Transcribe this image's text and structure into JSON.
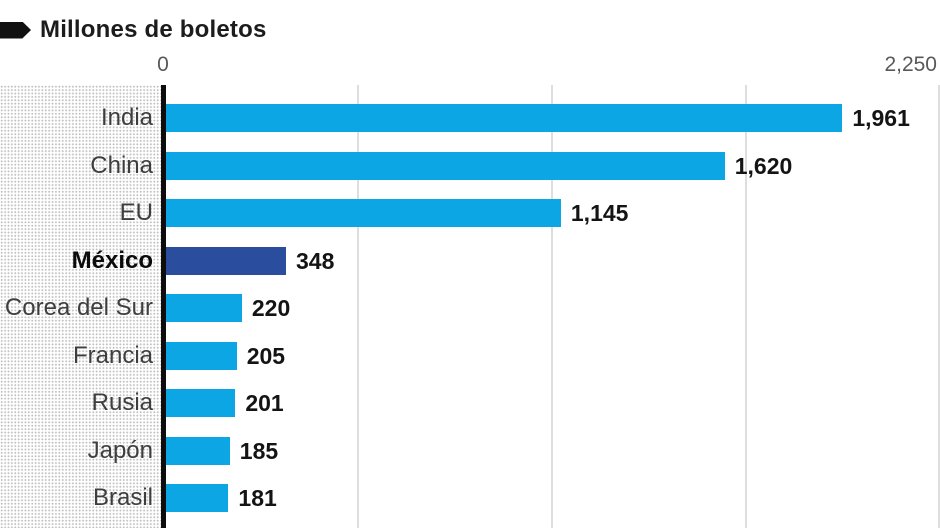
{
  "header": {
    "icon": "tag-icon",
    "title": "Millones de boletos"
  },
  "axis": {
    "min_label": "0",
    "max_label": "2,250",
    "min_value": 0,
    "max_value": 2250,
    "gridline_values": [
      562.5,
      1125,
      1687.5,
      2250
    ]
  },
  "colors": {
    "bar": "#0da6e4",
    "highlight_bar": "#2a4d9e",
    "axis_line": "#0d0d0d",
    "gridline": "#dedede"
  },
  "chart_data": {
    "type": "bar",
    "orientation": "horizontal",
    "title": "Millones de boletos",
    "xlabel": "",
    "ylabel": "",
    "xlim": [
      0,
      2250
    ],
    "grid": true,
    "categories": [
      "India",
      "China",
      "EU",
      "México",
      "Corea del Sur",
      "Francia",
      "Rusia",
      "Japón",
      "Brasil"
    ],
    "values": [
      1961,
      1620,
      1145,
      348,
      220,
      205,
      201,
      185,
      181
    ],
    "value_labels": [
      "1,961",
      "1,620",
      "1,145",
      "348",
      "220",
      "205",
      "201",
      "185",
      "181"
    ],
    "highlighted_category": "México"
  }
}
